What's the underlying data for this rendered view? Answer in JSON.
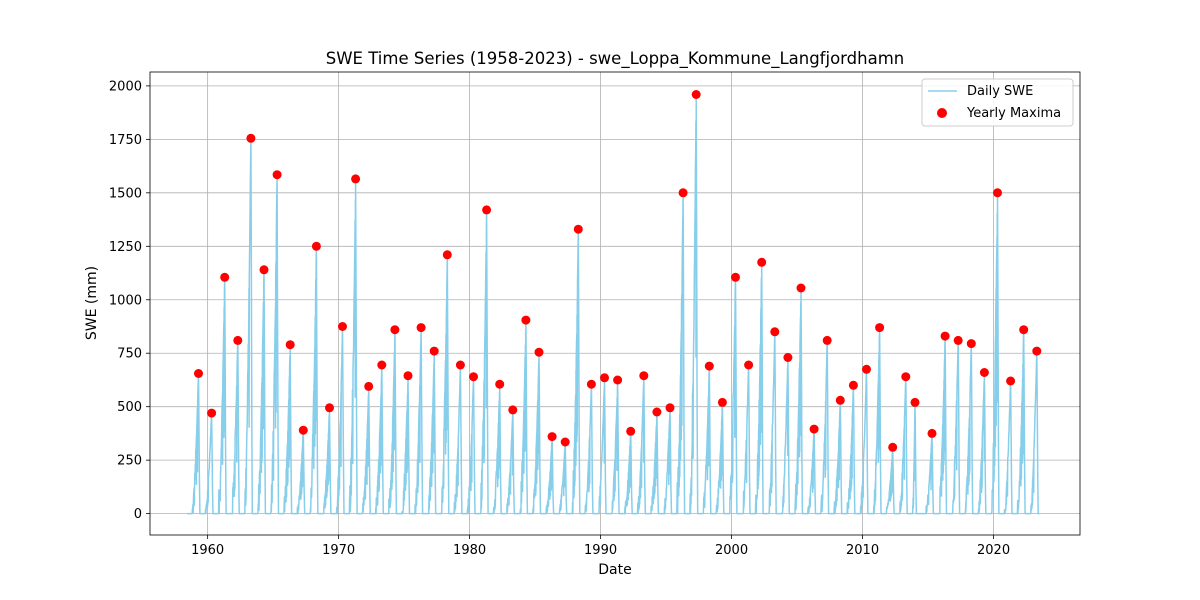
{
  "chart_data": {
    "type": "line",
    "title": "SWE Time Series (1958-2023) - swe_Loppa_Kommune_Langfjordhamn",
    "xlabel": "Date",
    "ylabel": "SWE (mm)",
    "xlim": [
      1955.6,
      2026.6
    ],
    "ylim": [
      -100,
      2065
    ],
    "x_ticks": [
      1960,
      1970,
      1980,
      1990,
      2000,
      2010,
      2020
    ],
    "y_ticks": [
      0,
      250,
      500,
      750,
      1000,
      1250,
      1500,
      1750,
      2000
    ],
    "grid": true,
    "legend_position": "top-right",
    "colors": {
      "daily": "#87ceeb",
      "maxima": "#ff0000"
    },
    "series": [
      {
        "name": "Daily SWE",
        "kind": "line"
      },
      {
        "name": "Yearly Maxima",
        "kind": "scatter",
        "x": [
          1959.3,
          1960.3,
          1961.3,
          1962.3,
          1963.3,
          1964.3,
          1965.3,
          1966.3,
          1967.3,
          1968.3,
          1969.3,
          1970.3,
          1971.3,
          1972.3,
          1973.3,
          1974.3,
          1975.3,
          1976.3,
          1977.3,
          1978.3,
          1979.3,
          1980.3,
          1981.3,
          1982.3,
          1983.3,
          1984.3,
          1985.3,
          1986.3,
          1987.3,
          1988.3,
          1989.3,
          1990.3,
          1991.3,
          1992.3,
          1993.3,
          1994.3,
          1995.3,
          1996.3,
          1997.3,
          1998.3,
          1999.3,
          2000.3,
          2001.3,
          2002.3,
          2003.3,
          2004.3,
          2005.3,
          2006.3,
          2007.3,
          2008.3,
          2009.3,
          2010.3,
          2011.3,
          2012.3,
          2013.3,
          2014.0,
          2015.3,
          2016.3,
          2017.3,
          2018.3,
          2019.3,
          2020.3,
          2021.3,
          2022.3,
          2023.3
        ],
        "y": [
          655,
          470,
          1105,
          810,
          1755,
          1140,
          1585,
          790,
          390,
          1250,
          495,
          875,
          1565,
          595,
          695,
          860,
          645,
          870,
          760,
          1210,
          695,
          640,
          1420,
          605,
          485,
          905,
          755,
          360,
          335,
          1330,
          605,
          635,
          625,
          385,
          645,
          475,
          495,
          1500,
          1960,
          690,
          520,
          1105,
          695,
          1175,
          850,
          730,
          1055,
          395,
          810,
          530,
          600,
          675,
          870,
          310,
          640,
          520,
          375,
          830,
          810,
          795,
          660,
          1500,
          620,
          860,
          760
        ]
      }
    ]
  }
}
